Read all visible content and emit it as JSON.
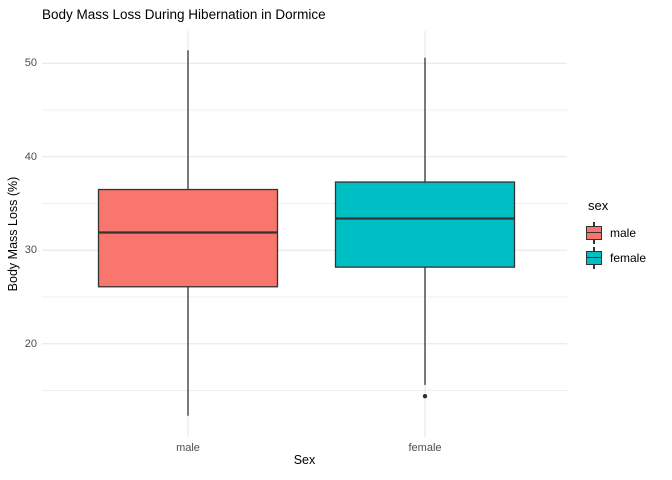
{
  "title": "Body Mass Loss During Hibernation in Dormice",
  "chart_data": {
    "type": "boxplot",
    "title": "Body Mass Loss During Hibernation in Dormice",
    "xlabel": "Sex",
    "ylabel": "Body Mass Loss (%)",
    "categories": [
      "male",
      "female"
    ],
    "y_ticks": [
      20,
      30,
      40,
      50
    ],
    "y_minor_ticks": [
      15,
      25,
      35,
      45
    ],
    "ylim": [
      10.5,
      53.5
    ],
    "grid": true,
    "legend_position": "right",
    "legend": {
      "title": "sex",
      "entries": [
        {
          "label": "male",
          "color": "#F8766D"
        },
        {
          "label": "female",
          "color": "#00BFC4"
        }
      ]
    },
    "series": [
      {
        "name": "male",
        "color": "#F8766D",
        "min": 12.3,
        "q1": 26.1,
        "median": 31.9,
        "q3": 36.5,
        "max": 51.4,
        "outliers": []
      },
      {
        "name": "female",
        "color": "#00BFC4",
        "min": 15.6,
        "q1": 28.2,
        "median": 33.4,
        "q3": 37.3,
        "max": 50.6,
        "outliers": [
          14.4
        ]
      }
    ],
    "colors": {
      "box_stroke": "#333333",
      "grid_major": "#e6e6e6",
      "grid_minor": "#efefef",
      "tick_label": "#4d4d4d",
      "outlier": "#2f2f2f"
    }
  }
}
